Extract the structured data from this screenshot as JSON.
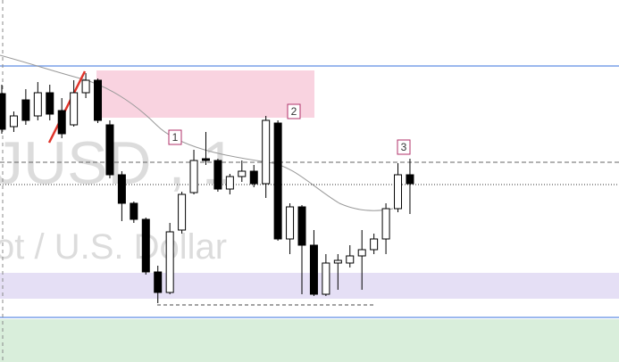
{
  "chart_data": {
    "type": "candlestick",
    "watermark": [
      "JUSD , 1",
      "ot / U.S. Dollar"
    ],
    "annotations": [
      "1",
      "2",
      "3"
    ],
    "ylim": [
      0,
      406
    ],
    "up_color": "#ffffff",
    "down_color": "#000000",
    "open": [
      301,
      264,
      294,
      276,
      302,
      282,
      266,
      302,
      316,
      266,
      210,
      178,
      160,
      101,
      78,
      148,
      190,
      228,
      226,
      194,
      208,
      214,
      200,
      268,
      138,
      174,
      131,
      76,
      111,
      111,
      119,
      126,
      138,
      172,
      210
    ],
    "high": [
      311,
      281,
      306,
      314,
      311,
      296,
      316,
      324,
      318,
      271,
      214,
      180,
      162,
      108,
      156,
      191,
      238,
      258,
      228,
      211,
      226,
      221,
      276,
      271,
      178,
      176,
      148,
      121,
      121,
      131,
      148,
      144,
      178,
      223,
      228
    ],
    "low": [
      256,
      258,
      266,
      271,
      271,
      251,
      264,
      296,
      268,
      206,
      158,
      156,
      98,
      66,
      76,
      144,
      188,
      221,
      191,
      188,
      202,
      196,
      184,
      136,
      121,
      76,
      74,
      74,
      81,
      106,
      81,
      121,
      121,
      168,
      166
    ],
    "close": [
      261,
      276,
      271,
      302,
      278,
      256,
      302,
      316,
      271,
      210,
      178,
      160,
      101,
      78,
      146,
      188,
      226,
      226,
      194,
      208,
      214,
      200,
      271,
      138,
      174,
      131,
      76,
      111,
      114,
      119,
      126,
      138,
      172,
      210,
      200
    ]
  }
}
